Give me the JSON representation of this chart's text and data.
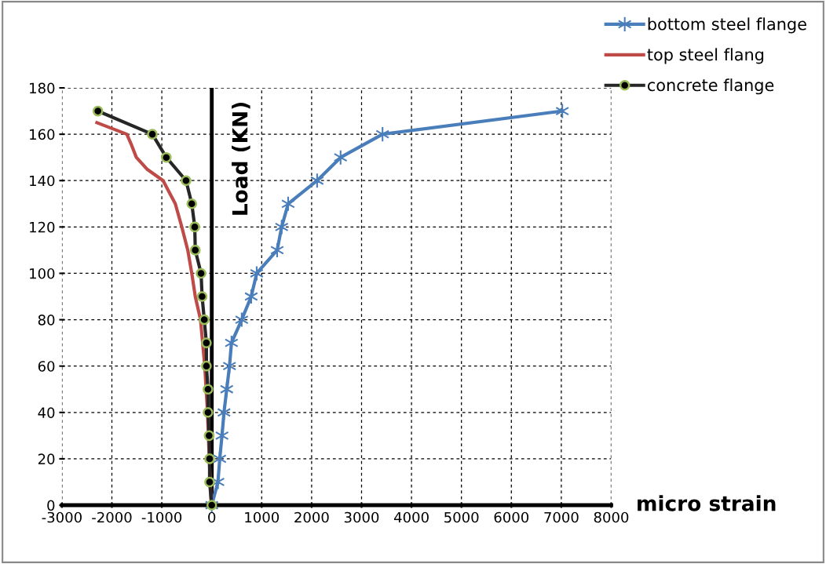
{
  "chart_data": {
    "type": "line",
    "xlabel": "micro strain",
    "ylabel": "Load (KN)",
    "xlim": [
      -3000,
      8000
    ],
    "xticks": [
      -3000,
      -2000,
      -1000,
      0,
      1000,
      2000,
      3000,
      4000,
      5000,
      6000,
      7000,
      8000
    ],
    "ylim": [
      0,
      180
    ],
    "yticks": [
      0,
      20,
      40,
      60,
      80,
      100,
      120,
      140,
      160,
      180
    ],
    "grid": true,
    "legend": "top right",
    "line_style": "solid",
    "series": [
      {
        "name": "bottom steel flange",
        "color": "#4a7ebb",
        "marker": "cross",
        "x": [
          0,
          124,
          160,
          205,
          245,
          300,
          355,
          395,
          600,
          790,
          900,
          1310,
          1400,
          1530,
          2110,
          2580,
          3420,
          7020
        ],
        "values": [
          0,
          10,
          20,
          30,
          40,
          50,
          60,
          70,
          80,
          90,
          100,
          110,
          120,
          130,
          140,
          150,
          160,
          170
        ]
      },
      {
        "name": "top steel flang",
        "color": "#be4b48",
        "marker": "none",
        "x": [
          -10,
          -50,
          -85,
          -140,
          -225,
          -330,
          -400,
          -480,
          -600,
          -730,
          -975,
          -1300,
          -1510,
          -1600,
          -1700,
          -2300
        ],
        "values": [
          0,
          20,
          40,
          60,
          80,
          90,
          100,
          110,
          120,
          130,
          140,
          145,
          150,
          155,
          160,
          165
        ]
      },
      {
        "name": "concrete flange",
        "color": "#262626",
        "marker": "circle",
        "x": [
          0,
          -43,
          -43,
          -53,
          -75,
          -75,
          -107,
          -107,
          -150,
          -193,
          -214,
          -330,
          -340,
          -400,
          -515,
          -910,
          -1190,
          -2280
        ],
        "values": [
          0,
          10,
          20,
          30,
          40,
          50,
          60,
          70,
          80,
          90,
          100,
          110,
          120,
          130,
          140,
          150,
          160,
          170
        ]
      }
    ]
  }
}
